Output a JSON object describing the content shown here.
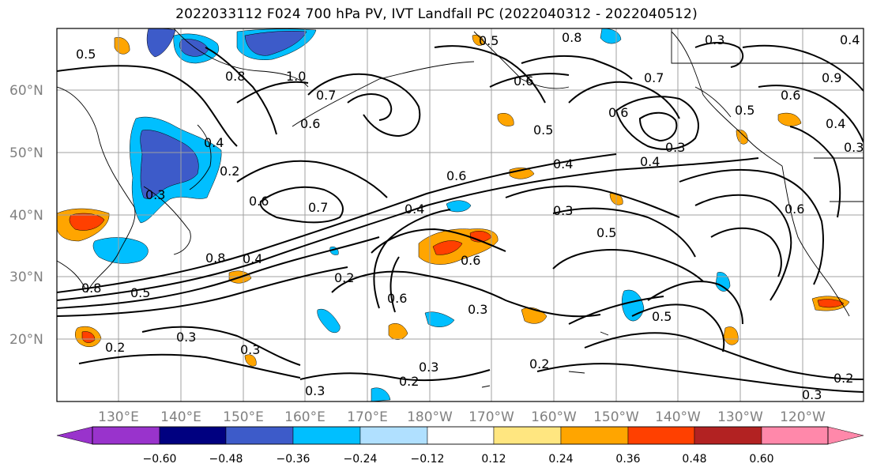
{
  "title": "2022033112 F024 700 hPa PV, IVT Landfall PC (2022040312 - 2022040512)",
  "map": {
    "lat_ticks": [
      "60°N",
      "50°N",
      "40°N",
      "30°N",
      "20°N"
    ],
    "lon_ticks": [
      "130°E",
      "140°E",
      "150°E",
      "160°E",
      "170°E",
      "180°W",
      "170°W",
      "160°W",
      "150°W",
      "140°W",
      "130°W",
      "120°W"
    ],
    "contour_labels": [
      "0.5",
      "0.5",
      "0.8",
      "0.3",
      "0.4",
      "1.0",
      "0.8",
      "0.7",
      "0.6",
      "0.4",
      "0.2",
      "0.3",
      "0.7",
      "0.6",
      "0.6",
      "0.4",
      "0.8",
      "0.4",
      "0.4",
      "0.3",
      "0.6",
      "0.5",
      "0.2",
      "0.6",
      "0.3",
      "0.5",
      "0.3",
      "0.2",
      "0.3",
      "0.2",
      "0.3",
      "0.6",
      "0.7",
      "0.5",
      "0.6",
      "0.4",
      "0.3",
      "0.2",
      "0.3",
      "0.5",
      "0.9",
      "0.5",
      "0.4",
      "0.3",
      "0.6",
      "0.6",
      "0.8",
      "0.2",
      "0.3"
    ]
  },
  "colorbar": {
    "ticks": [
      "−0.60",
      "−0.48",
      "−0.36",
      "−0.24",
      "−0.12",
      "0.12",
      "0.24",
      "0.36",
      "0.48",
      "0.60"
    ],
    "colors": [
      "#9933cc",
      "#000080",
      "#3d5bc9",
      "#00bfff",
      "#b0e0ff",
      "#ffffff",
      "#ffe680",
      "#ffa500",
      "#ff4000",
      "#b22222",
      "#ff88aa"
    ]
  },
  "colors": {
    "purple": "#9933cc",
    "navy": "#000080",
    "royal": "#3d5bc9",
    "sky": "#00bfff",
    "pale_blue": "#b0e0ff",
    "pale_yellow": "#ffe680",
    "orange": "#ffa500",
    "red_orange": "#ff4000",
    "brick": "#b22222",
    "pink": "#ff88aa"
  }
}
